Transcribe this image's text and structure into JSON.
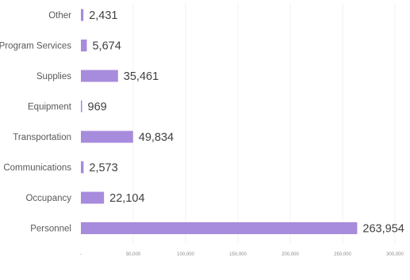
{
  "chart_data": {
    "type": "bar",
    "orientation": "horizontal",
    "categories": [
      "Other",
      "Program Services",
      "Supplies",
      "Equipment",
      "Transportation",
      "Communications",
      "Occupancy",
      "Personnel"
    ],
    "values": [
      2431,
      5674,
      35461,
      969,
      49834,
      2573,
      22104,
      263954
    ],
    "value_labels": [
      "2,431",
      "5,674",
      "35,461",
      "969",
      "49,834",
      "2,573",
      "22,104",
      "263,954"
    ],
    "xlim": [
      0,
      300000
    ],
    "x_ticks": [
      0,
      50000,
      100000,
      150000,
      200000,
      250000,
      300000
    ],
    "x_tick_labels": [
      "-",
      "50,000",
      "100,000",
      "150,000",
      "200,000",
      "250,000",
      "300,000"
    ],
    "bar_color": "#a78bdc",
    "grid": true,
    "legend": "none"
  }
}
